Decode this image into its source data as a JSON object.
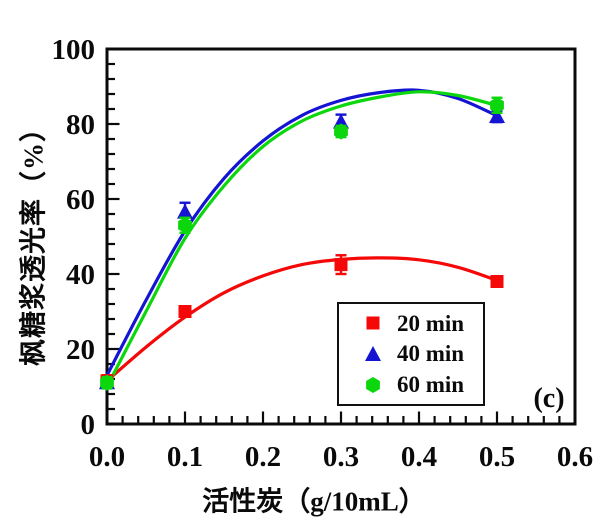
{
  "figure": {
    "panel_label": "(c)"
  },
  "chart_data": {
    "type": "scatter",
    "title": "",
    "xlabel": "活性炭（g/10mL）",
    "ylabel": "枫糖浆透光率（%）",
    "xlim": [
      0.0,
      0.6
    ],
    "ylim": [
      0,
      100
    ],
    "x_major_ticks": [
      0.0,
      0.1,
      0.2,
      0.3,
      0.4,
      0.5,
      0.6
    ],
    "x_tick_labels": [
      "0.0",
      "0.1",
      "0.2",
      "0.3",
      "0.4",
      "0.5",
      "0.6"
    ],
    "y_major_ticks": [
      0,
      20,
      40,
      60,
      80,
      100
    ],
    "y_tick_labels": [
      "0",
      "20",
      "40",
      "60",
      "80",
      "100"
    ],
    "x_minor_step": 0.02,
    "y_minor_step": 4,
    "grid": false,
    "legend_position": "inside-lower-right",
    "axis_color": "#0a0a0a",
    "series": [
      {
        "name": "20 min",
        "color": "#f40808",
        "marker": "square",
        "points": [
          {
            "x": 0.0,
            "y": 11.5,
            "err": 1.5
          },
          {
            "x": 0.1,
            "y": 30.0,
            "err": 1.0
          },
          {
            "x": 0.3,
            "y": 42.5,
            "err": 2.5
          },
          {
            "x": 0.5,
            "y": 38.0,
            "err": 1.0
          }
        ],
        "fit_curve": [
          [
            0.0,
            11.5
          ],
          [
            0.05,
            20.5
          ],
          [
            0.1,
            28.5
          ],
          [
            0.15,
            35.0
          ],
          [
            0.2,
            39.5
          ],
          [
            0.25,
            42.5
          ],
          [
            0.3,
            43.9
          ],
          [
            0.35,
            44.3
          ],
          [
            0.4,
            43.8
          ],
          [
            0.45,
            41.8
          ],
          [
            0.5,
            38.3
          ]
        ]
      },
      {
        "name": "40 min",
        "color": "#1414d2",
        "marker": "triangle",
        "points": [
          {
            "x": 0.0,
            "y": 11.0,
            "err": 1.5
          },
          {
            "x": 0.1,
            "y": 56.5,
            "err": 2.5
          },
          {
            "x": 0.3,
            "y": 80.5,
            "err": 2.0
          },
          {
            "x": 0.5,
            "y": 82.0,
            "err": 1.5
          }
        ],
        "fit_curve": [
          [
            0.0,
            13.0
          ],
          [
            0.05,
            33.0
          ],
          [
            0.1,
            51.5
          ],
          [
            0.15,
            65.5
          ],
          [
            0.2,
            75.5
          ],
          [
            0.25,
            82.3
          ],
          [
            0.3,
            86.3
          ],
          [
            0.35,
            88.4
          ],
          [
            0.4,
            89.0
          ],
          [
            0.45,
            86.8
          ],
          [
            0.5,
            82.2
          ]
        ]
      },
      {
        "name": "60 min",
        "color": "#0cd60c",
        "marker": "hexagon",
        "points": [
          {
            "x": 0.0,
            "y": 11.0,
            "err": 1.5
          },
          {
            "x": 0.1,
            "y": 53.0,
            "err": 2.0
          },
          {
            "x": 0.3,
            "y": 78.0,
            "err": 1.5
          },
          {
            "x": 0.5,
            "y": 85.0,
            "err": 2.0
          }
        ],
        "fit_curve": [
          [
            0.0,
            10.0
          ],
          [
            0.05,
            30.0
          ],
          [
            0.1,
            49.5
          ],
          [
            0.15,
            63.5
          ],
          [
            0.2,
            74.0
          ],
          [
            0.25,
            80.8
          ],
          [
            0.3,
            84.8
          ],
          [
            0.35,
            87.2
          ],
          [
            0.4,
            88.6
          ],
          [
            0.45,
            87.6
          ],
          [
            0.5,
            84.9
          ]
        ]
      }
    ]
  }
}
